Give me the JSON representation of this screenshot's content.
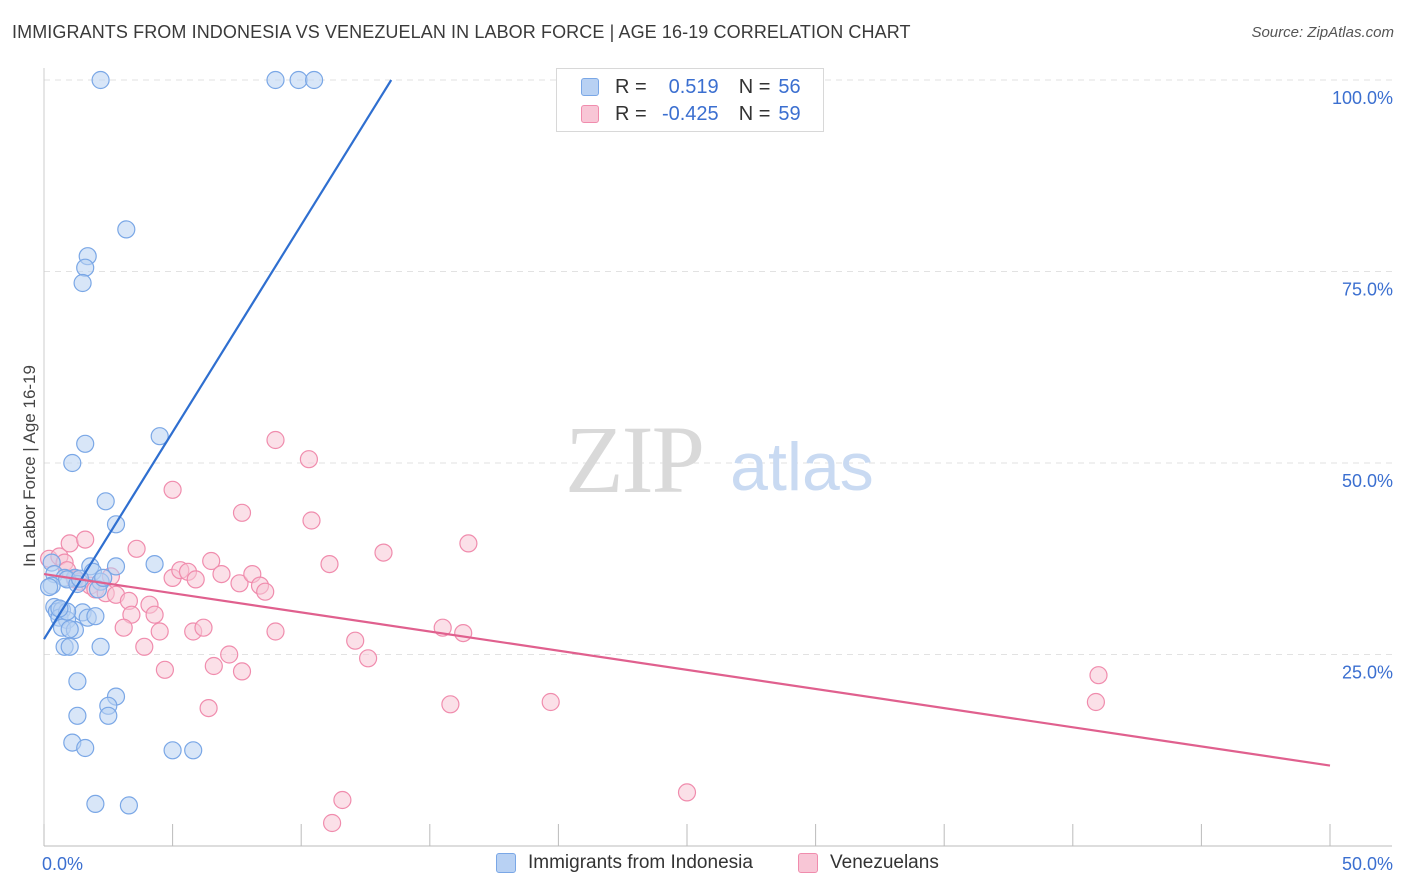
{
  "title": "IMMIGRANTS FROM INDONESIA VS VENEZUELAN IN LABOR FORCE | AGE 16-19 CORRELATION CHART",
  "source": "Source: ZipAtlas.com",
  "watermark": {
    "zip": "ZIP",
    "atlas": "atlas"
  },
  "legend": {
    "r_label": "R =",
    "n_label": "N =",
    "rows": [
      {
        "r": "0.519",
        "n": "56"
      },
      {
        "r": "-0.425",
        "n": "59"
      }
    ]
  },
  "chart_data": {
    "type": "scatter",
    "title": "IMMIGRANTS FROM INDONESIA VS VENEZUELAN IN LABOR FORCE | AGE 16-19 CORRELATION CHART",
    "xlabel": "",
    "ylabel": "In Labor Force | Age 16-19",
    "xlim": [
      0,
      50
    ],
    "ylim": [
      0,
      100
    ],
    "x_tick_labels": [
      {
        "value": 0,
        "label": "0.0%"
      },
      {
        "value": 50,
        "label": "50.0%"
      }
    ],
    "y_tick_labels": [
      {
        "value": 25,
        "label": "25.0%"
      },
      {
        "value": 50,
        "label": "50.0%"
      },
      {
        "value": 75,
        "label": "75.0%"
      },
      {
        "value": 100,
        "label": "100.0%"
      }
    ],
    "series": [
      {
        "name": "Immigrants from Indonesia",
        "color": "#7aa7e6",
        "fill": "#b8d1f3",
        "line_color": "#2f6fd0",
        "r": 0.519,
        "n": 56,
        "trend": {
          "x": [
            0,
            13.5
          ],
          "y": [
            27,
            100
          ]
        },
        "points": [
          [
            2.2,
            100
          ],
          [
            9,
            100
          ],
          [
            9.9,
            100
          ],
          [
            10.5,
            100
          ],
          [
            3.2,
            80.5
          ],
          [
            1.7,
            77
          ],
          [
            1.6,
            75.5
          ],
          [
            1.5,
            73.5
          ],
          [
            4.5,
            53.5
          ],
          [
            1.6,
            52.5
          ],
          [
            1.1,
            50
          ],
          [
            2.4,
            45
          ],
          [
            2.8,
            42
          ],
          [
            0.3,
            37
          ],
          [
            0.4,
            35.5
          ],
          [
            1.2,
            35
          ],
          [
            2.8,
            36.5
          ],
          [
            1.8,
            36.5
          ],
          [
            1.9,
            35.8
          ],
          [
            2.2,
            34.5
          ],
          [
            0.8,
            35
          ],
          [
            0.9,
            34.8
          ],
          [
            0.3,
            34
          ],
          [
            1.3,
            34.2
          ],
          [
            4.3,
            36.8
          ],
          [
            2.1,
            33.5
          ],
          [
            0.4,
            31.2
          ],
          [
            0.5,
            30.6
          ],
          [
            0.7,
            30.8
          ],
          [
            0.6,
            29.8
          ],
          [
            1.5,
            30.5
          ],
          [
            1.7,
            29.8
          ],
          [
            2.0,
            30.0
          ],
          [
            0.9,
            29.5
          ],
          [
            0.7,
            28.5
          ],
          [
            1.2,
            28.2
          ],
          [
            0.8,
            26.0
          ],
          [
            1.0,
            26.0
          ],
          [
            2.2,
            26.0
          ],
          [
            1.3,
            21.5
          ],
          [
            2.8,
            19.5
          ],
          [
            2.5,
            18.3
          ],
          [
            1.3,
            17.0
          ],
          [
            2.5,
            17.0
          ],
          [
            1.1,
            13.5
          ],
          [
            1.6,
            12.8
          ],
          [
            5.0,
            12.5
          ],
          [
            5.8,
            12.5
          ],
          [
            2.0,
            5.5
          ],
          [
            3.3,
            5.3
          ],
          [
            0.9,
            30.6
          ],
          [
            1.4,
            34.9
          ],
          [
            0.2,
            33.8
          ],
          [
            0.6,
            31.0
          ],
          [
            1.0,
            28.3
          ],
          [
            2.3,
            35.0
          ]
        ]
      },
      {
        "name": "Venezuelans",
        "color": "#f08cad",
        "fill": "#f8c6d6",
        "line_color": "#e0608e",
        "r": -0.425,
        "n": 59,
        "trend": {
          "x": [
            0,
            50
          ],
          "y": [
            35.5,
            10.5
          ]
        },
        "points": [
          [
            0.2,
            37.5
          ],
          [
            0.6,
            37.8
          ],
          [
            0.8,
            37.0
          ],
          [
            0.9,
            36.0
          ],
          [
            1.2,
            35.0
          ],
          [
            1.0,
            39.5
          ],
          [
            1.6,
            40.0
          ],
          [
            1.2,
            34.8
          ],
          [
            1.4,
            34.5
          ],
          [
            1.8,
            34.0
          ],
          [
            2.0,
            33.5
          ],
          [
            2.4,
            33.0
          ],
          [
            2.8,
            32.8
          ],
          [
            3.3,
            32.0
          ],
          [
            2.6,
            35.2
          ],
          [
            3.6,
            38.8
          ],
          [
            4.1,
            31.5
          ],
          [
            4.3,
            30.2
          ],
          [
            3.4,
            30.2
          ],
          [
            3.1,
            28.5
          ],
          [
            4.5,
            28.0
          ],
          [
            3.9,
            26.0
          ],
          [
            4.7,
            23.0
          ],
          [
            5.0,
            46.5
          ],
          [
            5.0,
            35.0
          ],
          [
            5.3,
            36.0
          ],
          [
            5.6,
            35.8
          ],
          [
            5.9,
            34.8
          ],
          [
            5.8,
            28.0
          ],
          [
            6.2,
            28.5
          ],
          [
            6.5,
            37.2
          ],
          [
            6.6,
            23.5
          ],
          [
            6.4,
            18.0
          ],
          [
            6.9,
            35.5
          ],
          [
            7.2,
            25.0
          ],
          [
            7.6,
            34.3
          ],
          [
            7.7,
            22.8
          ],
          [
            8.1,
            35.5
          ],
          [
            8.4,
            34.0
          ],
          [
            8.6,
            33.2
          ],
          [
            7.7,
            43.5
          ],
          [
            9.0,
            28.0
          ],
          [
            9.0,
            53.0
          ],
          [
            10.3,
            50.5
          ],
          [
            10.4,
            42.5
          ],
          [
            11.1,
            36.8
          ],
          [
            12.1,
            26.8
          ],
          [
            12.6,
            24.5
          ],
          [
            13.2,
            38.3
          ],
          [
            15.5,
            28.5
          ],
          [
            15.8,
            18.5
          ],
          [
            16.3,
            27.8
          ],
          [
            16.5,
            39.5
          ],
          [
            19.7,
            18.8
          ],
          [
            25.0,
            7.0
          ],
          [
            41.0,
            22.3
          ],
          [
            40.9,
            18.8
          ],
          [
            11.6,
            6.0
          ],
          [
            11.2,
            3.0
          ]
        ]
      }
    ]
  }
}
